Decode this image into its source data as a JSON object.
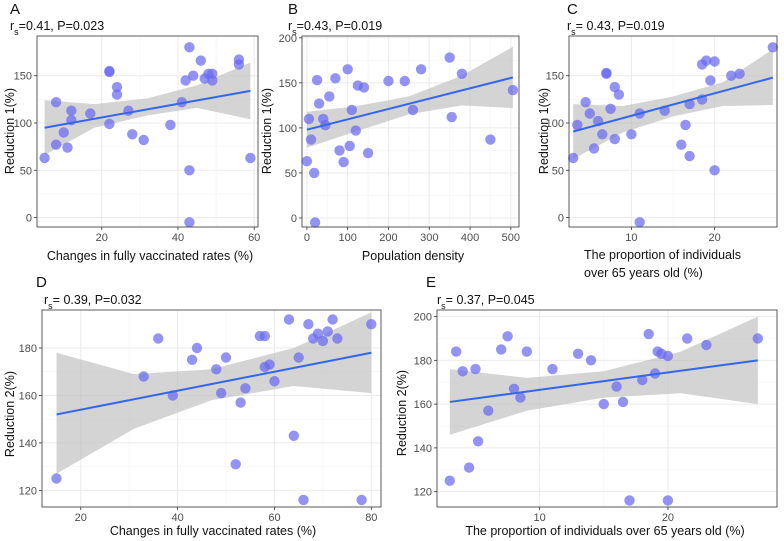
{
  "chart_data": [
    {
      "id": "A",
      "type": "scatter",
      "panel_label": "A",
      "stat": {
        "r_prefix": "r",
        "r_sub": "s",
        "text": "=0.41, P=0.023"
      },
      "xlabel": "Changes in fully vaccinated rates (%)",
      "xlabel_lines": [
        "Changes in fully vaccinated rates (%)"
      ],
      "ylabel": "Reduction 1(%)",
      "xlim": [
        3,
        61
      ],
      "ylim": [
        -10,
        192
      ],
      "xticks": [
        20,
        40,
        60
      ],
      "yticks": [
        0,
        50,
        100,
        150
      ],
      "x": [
        5,
        8,
        8,
        10,
        11,
        12,
        12,
        17,
        22,
        22,
        22,
        24,
        24,
        27,
        28,
        31,
        38,
        41,
        42,
        43,
        43,
        43,
        44,
        46,
        47,
        48,
        49,
        49,
        56,
        56,
        59
      ],
      "y": [
        63,
        77,
        122,
        90,
        74,
        103,
        113,
        110,
        155,
        154,
        99,
        130,
        138,
        113,
        88,
        82,
        98,
        122,
        145,
        50,
        -5,
        180,
        150,
        166,
        147,
        152,
        152,
        145,
        162,
        167,
        63
      ],
      "fit": {
        "x": [
          5,
          59
        ],
        "y": [
          95,
          134
        ]
      },
      "band": {
        "x": [
          5,
          18,
          32,
          45,
          59
        ],
        "upper": [
          124,
          120,
          126,
          140,
          164
        ],
        "lower": [
          66,
          95,
          108,
          116,
          104
        ]
      }
    },
    {
      "id": "B",
      "type": "scatter",
      "panel_label": "B",
      "stat": {
        "r_prefix": "r",
        "r_sub": "s",
        "text": "=0.43, P=0.019"
      },
      "xlabel": "Population density",
      "xlabel_lines": [
        "Population density"
      ],
      "ylabel": "Reduction 1(%)",
      "xlim": [
        -12,
        520
      ],
      "ylim": [
        -10,
        202
      ],
      "xticks": [
        0,
        100,
        200,
        300,
        400,
        500
      ],
      "yticks": [
        0,
        50,
        100,
        150,
        200
      ],
      "x": [
        0,
        5,
        10,
        18,
        20,
        25,
        30,
        40,
        45,
        55,
        70,
        80,
        90,
        100,
        105,
        110,
        120,
        125,
        140,
        150,
        200,
        240,
        260,
        280,
        350,
        355,
        380,
        450,
        505
      ],
      "y": [
        63,
        110,
        87,
        50,
        -5,
        153,
        127,
        110,
        103,
        135,
        155,
        75,
        62,
        165,
        80,
        120,
        97,
        147,
        145,
        72,
        152,
        152,
        120,
        165,
        178,
        112,
        160,
        87,
        142
      ],
      "fit": {
        "x": [
          0,
          505
        ],
        "y": [
          98,
          156
        ]
      },
      "band": {
        "x": [
          0,
          120,
          250,
          380,
          505
        ],
        "upper": [
          118,
          124,
          135,
          158,
          190
        ],
        "lower": [
          78,
          96,
          115,
          125,
          122
        ]
      }
    },
    {
      "id": "C",
      "type": "scatter",
      "panel_label": "C",
      "stat": {
        "r_prefix": "r",
        "r_sub": "s",
        "text": "= 0.43, P=0.019"
      },
      "xlabel": "The proportion of individuals over 65 years old (%)",
      "xlabel_lines": [
        "The proportion of individuals",
        "over 65 years old (%)"
      ],
      "ylabel": "Reduction 1(%)",
      "xlim": [
        2.5,
        27.5
      ],
      "ylim": [
        -10,
        192
      ],
      "xticks": [
        10,
        20
      ],
      "yticks": [
        0,
        50,
        100,
        150
      ],
      "x": [
        3,
        3.5,
        4.5,
        5,
        5.5,
        6,
        6.5,
        7,
        7,
        7.5,
        8,
        8,
        8.5,
        10,
        11,
        11,
        14,
        16,
        16.5,
        17,
        17,
        18.5,
        18.5,
        19,
        19.5,
        20,
        20,
        22,
        23,
        27
      ],
      "y": [
        63,
        98,
        122,
        110,
        73,
        102,
        88,
        152,
        153,
        115,
        83,
        138,
        130,
        88,
        110,
        -5,
        113,
        77,
        98,
        65,
        120,
        125,
        162,
        166,
        145,
        165,
        50,
        150,
        152,
        180
      ],
      "fit": {
        "x": [
          3,
          27
        ],
        "y": [
          91,
          148
        ]
      },
      "band": {
        "x": [
          3,
          9,
          15,
          21,
          27
        ],
        "upper": [
          120,
          118,
          128,
          143,
          178
        ],
        "lower": [
          62,
          90,
          107,
          118,
          119
        ]
      }
    },
    {
      "id": "D",
      "type": "scatter",
      "panel_label": "D",
      "stat": {
        "r_prefix": "r",
        "r_sub": "s",
        "text": "= 0.39, P=0.032"
      },
      "xlabel": "Changes in fully vaccinated rates (%)",
      "xlabel_lines": [
        "Changes in fully vaccinated rates (%)"
      ],
      "ylabel": "Reduction 2(%)",
      "xlim": [
        12,
        82
      ],
      "ylim": [
        113,
        196
      ],
      "xticks": [
        20,
        40,
        60,
        80
      ],
      "yticks": [
        120,
        140,
        160,
        180
      ],
      "x": [
        15,
        33,
        36,
        39,
        43,
        44,
        48,
        49,
        50,
        52,
        53,
        54,
        57,
        58,
        58,
        59,
        60,
        63,
        64,
        65,
        66,
        67,
        68,
        69,
        70,
        71,
        72,
        73,
        78,
        80
      ],
      "y": [
        125,
        168,
        184,
        160,
        175,
        180,
        171,
        161,
        176,
        131,
        157,
        163,
        185,
        185,
        172,
        173,
        166,
        192,
        143,
        176,
        116,
        190,
        184,
        186,
        183,
        187,
        192,
        184,
        116,
        190
      ],
      "fit": {
        "x": [
          15,
          80
        ],
        "y": [
          152,
          178
        ]
      },
      "band": {
        "x": [
          15,
          31,
          47,
          64,
          80
        ],
        "upper": [
          178,
          169,
          171,
          180,
          195
        ],
        "lower": [
          127,
          146,
          158,
          164,
          161
        ]
      }
    },
    {
      "id": "E",
      "type": "scatter",
      "panel_label": "E",
      "stat": {
        "r_prefix": "r",
        "r_sub": "s",
        "text": "= 0.37, P=0.045"
      },
      "xlabel": "The proportion of individuals over 65 years old (%)",
      "xlabel_lines": [
        "The proportion of individuals over 65 years old (%)"
      ],
      "ylabel": "Reduction 2(%)",
      "xlim": [
        2,
        28.5
      ],
      "ylim": [
        113,
        203
      ],
      "xticks": [
        10,
        20
      ],
      "yticks": [
        120,
        140,
        160,
        180,
        200
      ],
      "x": [
        3,
        3.5,
        4,
        4.5,
        5,
        5.2,
        6,
        7,
        7.5,
        8,
        8.5,
        9,
        11,
        13,
        14,
        15,
        16,
        16.5,
        17,
        18,
        18.5,
        19,
        19.2,
        19.5,
        20,
        20,
        21.5,
        23,
        27
      ],
      "y": [
        125,
        184,
        175,
        131,
        176,
        143,
        157,
        185,
        191,
        167,
        163,
        184,
        176,
        183,
        180,
        160,
        168,
        161,
        116,
        171,
        192,
        174,
        184,
        183,
        182,
        116,
        190,
        187,
        190
      ],
      "fit": {
        "x": [
          3,
          27
        ],
        "y": [
          161,
          180
        ]
      },
      "band": {
        "x": [
          3,
          9,
          15,
          21,
          27
        ],
        "upper": [
          176,
          172,
          175,
          184,
          200
        ],
        "lower": [
          146,
          157,
          163,
          165,
          160
        ]
      }
    }
  ]
}
